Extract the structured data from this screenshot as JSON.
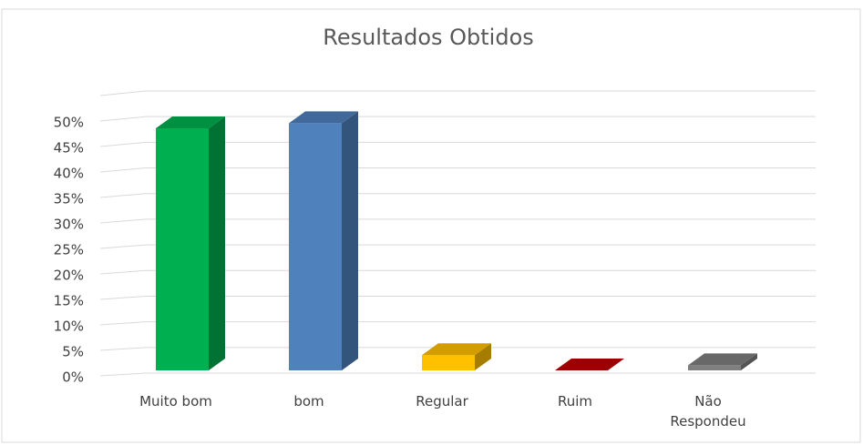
{
  "chart_data": {
    "type": "bar3d",
    "title": "Resultados Obtidos",
    "categories": [
      "Muito bom",
      "bom",
      "Regular",
      "Ruim",
      "Não Respondeu"
    ],
    "values": [
      47.5,
      48.5,
      3,
      0,
      1
    ],
    "colors": [
      "#00b050",
      "#4f81bd",
      "#ffc000",
      "#c00000",
      "#7f7f7f"
    ],
    "ylim": [
      0,
      55
    ],
    "yticks": [
      {
        "value": 0,
        "label": "0%"
      },
      {
        "value": 5,
        "label": "5%"
      },
      {
        "value": 10,
        "label": "10%"
      },
      {
        "value": 15,
        "label": "15%"
      },
      {
        "value": 20,
        "label": "20%"
      },
      {
        "value": 25,
        "label": "25%"
      },
      {
        "value": 30,
        "label": "30%"
      },
      {
        "value": 35,
        "label": "35%"
      },
      {
        "value": 40,
        "label": "40%"
      },
      {
        "value": 45,
        "label": "45%"
      },
      {
        "value": 50,
        "label": "50%"
      }
    ],
    "grid": true
  }
}
